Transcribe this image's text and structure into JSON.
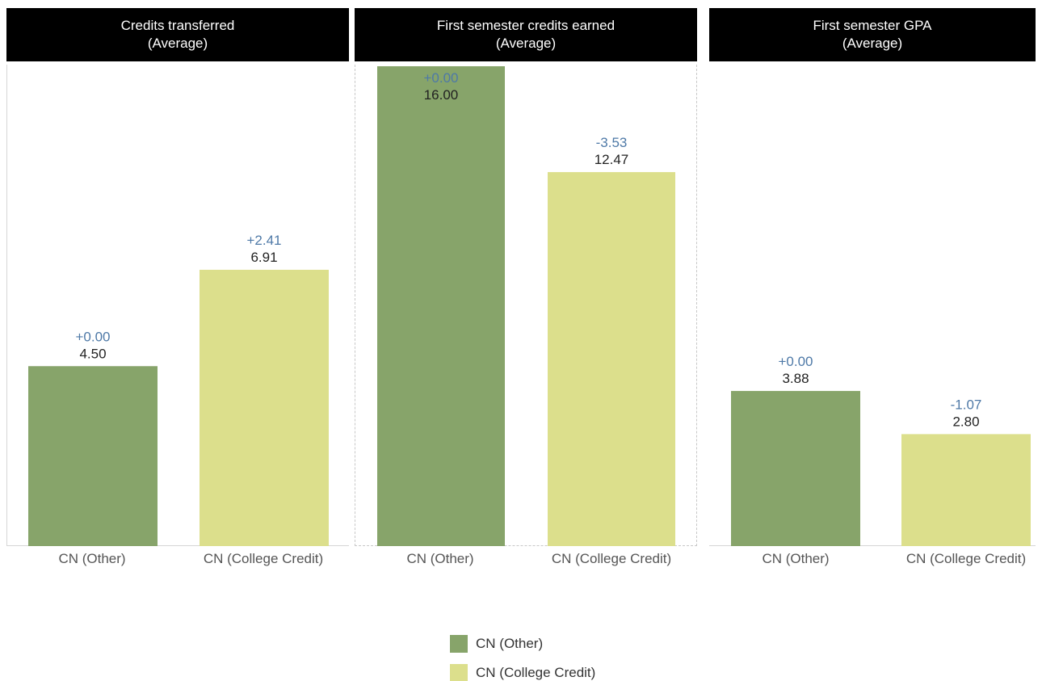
{
  "colors": {
    "cn_other": "#87a46a",
    "cn_college_credit": "#dcdf8c",
    "delta_text": "#4e79a7",
    "value_text": "#222222"
  },
  "legend": [
    {
      "label": "CN (Other)",
      "color": "#87a46a"
    },
    {
      "label": "CN (College Credit)",
      "color": "#dcdf8c"
    }
  ],
  "chart_data": [
    {
      "type": "bar",
      "title": "Credits transferred",
      "subtitle": "(Average)",
      "categories": [
        "CN (Other)",
        "CN (College Credit)"
      ],
      "values": [
        4.5,
        6.91
      ],
      "value_labels": [
        "4.50",
        "6.91"
      ],
      "delta_labels": [
        "+0.00",
        "+2.41"
      ],
      "ylim": [
        0,
        12.0
      ],
      "grid": false
    },
    {
      "type": "bar",
      "title": "First semester credits earned",
      "subtitle": "(Average)",
      "categories": [
        "CN (Other)",
        "CN (College Credit)"
      ],
      "values": [
        16.0,
        12.47
      ],
      "value_labels": [
        "16.00",
        "12.47"
      ],
      "delta_labels": [
        "+0.00",
        "-3.53"
      ],
      "ylim": [
        0,
        16.0
      ],
      "grid": false
    },
    {
      "type": "bar",
      "title": "First semester GPA",
      "subtitle": "(Average)",
      "categories": [
        "CN (Other)",
        "CN (College Credit)"
      ],
      "values": [
        3.88,
        2.8
      ],
      "value_labels": [
        "3.88",
        "2.80"
      ],
      "delta_labels": [
        "+0.00",
        "-1.07"
      ],
      "ylim": [
        0,
        12.0
      ],
      "grid": false
    }
  ]
}
